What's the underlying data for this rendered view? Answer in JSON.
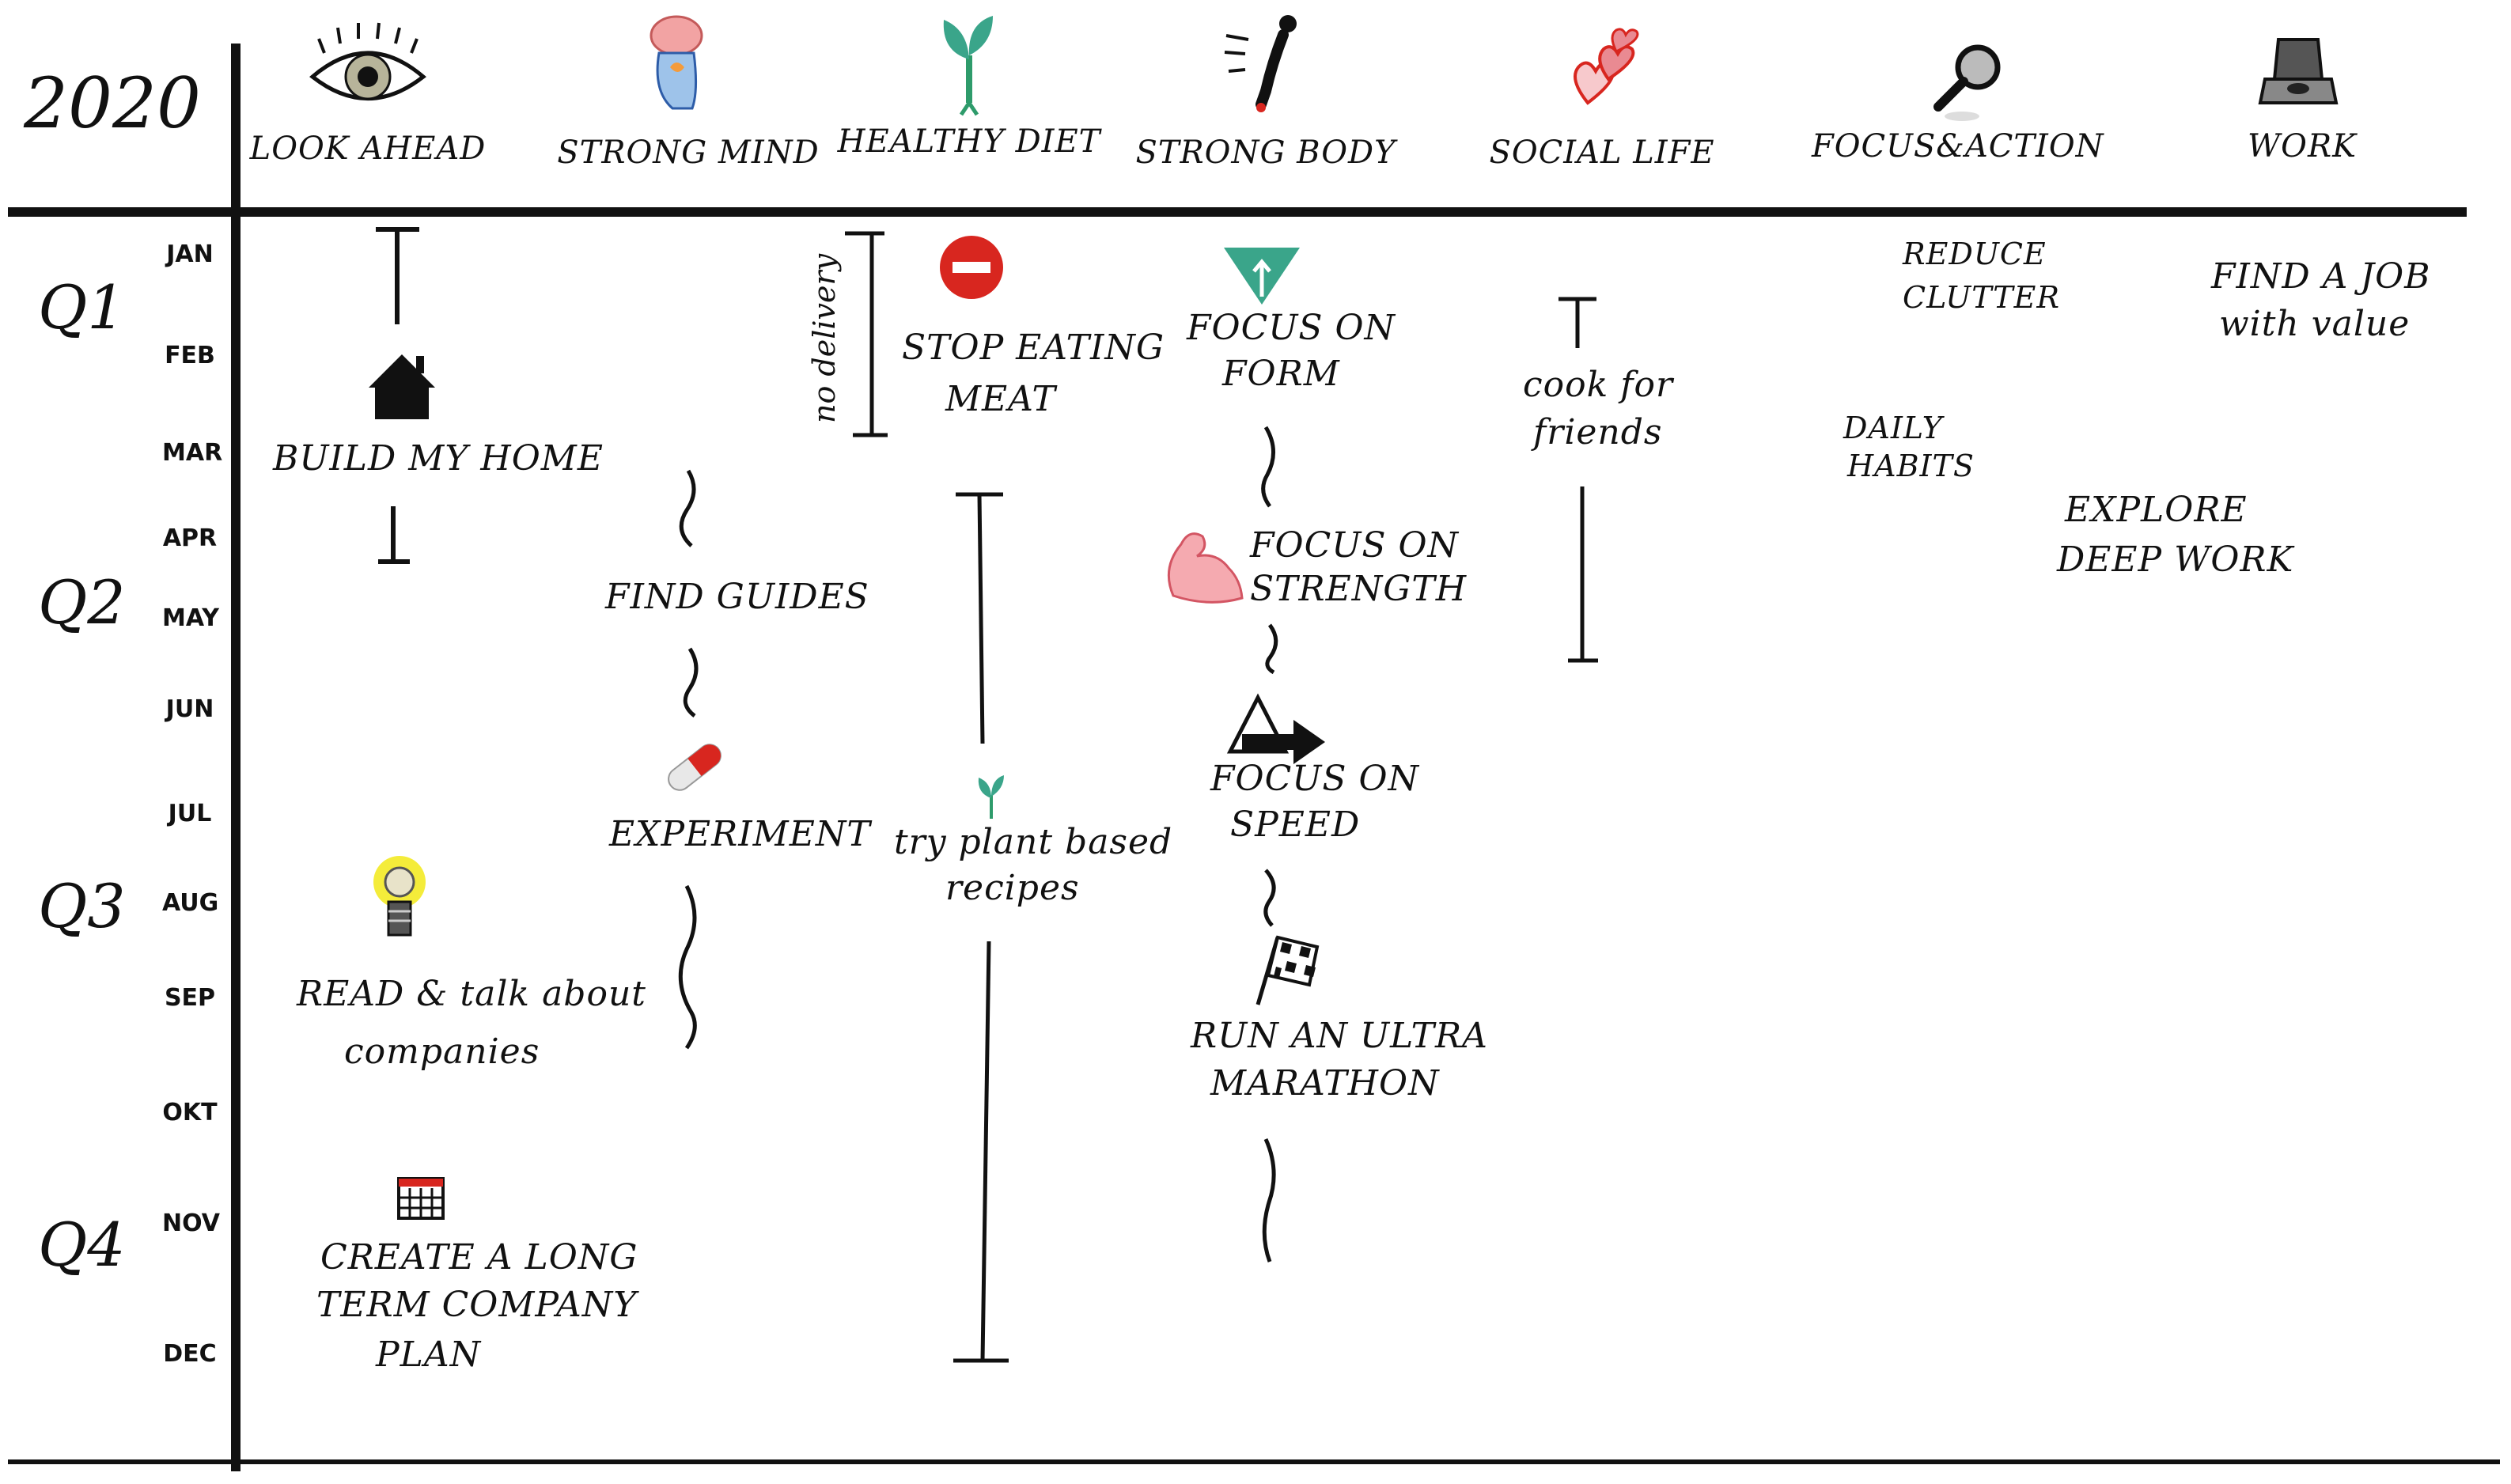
{
  "year": "2020",
  "quarters": [
    "Q1",
    "Q2",
    "Q3",
    "Q4"
  ],
  "months": [
    "JAN",
    "FEB",
    "MAR",
    "APR",
    "MAY",
    "JUN",
    "JUL",
    "AUG",
    "SEP",
    "OKT",
    "NOV",
    "DEC"
  ],
  "categories": [
    {
      "label": "LOOK AHEAD",
      "icon": "eye-icon"
    },
    {
      "label": "STRONG MIND",
      "icon": "brain-head-icon"
    },
    {
      "label": "HEALTHY DIET",
      "icon": "sprout-icon"
    },
    {
      "label": "STRONG BODY",
      "icon": "runner-icon"
    },
    {
      "label": "SOCIAL LIFE",
      "icon": "hearts-icon"
    },
    {
      "label": "FOCUS&ACTION",
      "icon": "magnifier-icon"
    },
    {
      "label": "WORK",
      "icon": "laptop-icon"
    }
  ],
  "look_ahead": {
    "build_home": "BUILD MY HOME",
    "read_talk_1": "READ & talk about",
    "read_talk_2": "companies",
    "plan_1": "CREATE A LONG",
    "plan_2": "TERM COMPANY",
    "plan_3": "PLAN"
  },
  "strong_mind": {
    "find_guides": "FIND GUIDES",
    "experiment": "EXPERIMENT"
  },
  "healthy_diet": {
    "no_delivery": "no delivery",
    "stop_meat_1": "STOP EATING",
    "stop_meat_2": "MEAT",
    "plant_1": "try plant based",
    "plant_2": "recipes"
  },
  "strong_body": {
    "form_1": "FOCUS ON",
    "form_2": "FORM",
    "strength_1": "FOCUS ON",
    "strength_2": "STRENGTH",
    "speed_1": "FOCUS ON",
    "speed_2": "SPEED",
    "ultra_1": "RUN AN ULTRA",
    "ultra_2": "MARATHON"
  },
  "social_life": {
    "cook_1": "cook for",
    "cook_2": "friends"
  },
  "focus_action": {
    "clutter_1": "REDUCE",
    "clutter_2": "CLUTTER",
    "habits_1": "DAILY",
    "habits_2": "HABITS"
  },
  "work": {
    "job_1": "FIND A JOB",
    "job_2": "with value",
    "deep_1": "EXPLORE",
    "deep_2": "DEEP WORK"
  },
  "colors": {
    "ink": "#111111",
    "red": "#d8261f",
    "green": "#2e9b6b",
    "teal": "#3aa58a",
    "pink": "#e88a92",
    "yellow": "#f4ec3a"
  }
}
